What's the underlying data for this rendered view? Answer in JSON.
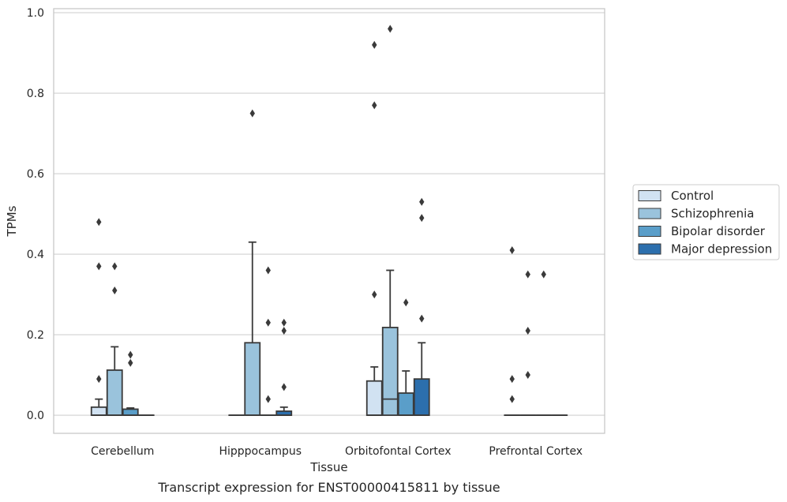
{
  "chart_data": {
    "type": "box",
    "xlabel": "Tissue",
    "ylabel": "TPMs",
    "caption": "Transcript expression for ENST00000415811 by tissue",
    "ylim": [
      -0.045,
      1.01
    ],
    "yticks": [
      "0.0",
      "0.2",
      "0.4",
      "0.6",
      "0.8",
      "1.0"
    ],
    "ytick_values": [
      0.0,
      0.2,
      0.4,
      0.6,
      0.8,
      1.0
    ],
    "grid": "horizontal",
    "legend_position": "right",
    "categories": [
      "Cerebellum",
      "Hipppocampus",
      "Orbitofontal Cortex",
      "Prefrontal Cortex"
    ],
    "series": [
      {
        "name": "Control",
        "color": "#d1e2f2",
        "boxes": [
          {
            "q1": 0.0,
            "median": 0.0,
            "q3": 0.02,
            "whisker_low": 0.0,
            "whisker_high": 0.04,
            "outliers": [
              0.09,
              0.37,
              0.48
            ]
          },
          {
            "q1": 0.0,
            "median": 0.0,
            "q3": 0.0,
            "whisker_low": 0.0,
            "whisker_high": 0.0,
            "outliers": []
          },
          {
            "q1": 0.0,
            "median": 0.0,
            "q3": 0.085,
            "whisker_low": 0.0,
            "whisker_high": 0.12,
            "outliers": [
              0.3,
              0.77,
              0.92
            ]
          },
          {
            "q1": 0.0,
            "median": 0.0,
            "q3": 0.0,
            "whisker_low": 0.0,
            "whisker_high": 0.0,
            "outliers": [
              0.04,
              0.09,
              0.41
            ]
          }
        ]
      },
      {
        "name": "Schizophrenia",
        "color": "#9ac3dc",
        "boxes": [
          {
            "q1": 0.0,
            "median": 0.0,
            "q3": 0.112,
            "whisker_low": 0.0,
            "whisker_high": 0.17,
            "outliers": [
              0.31,
              0.37
            ]
          },
          {
            "q1": 0.0,
            "median": 0.0,
            "q3": 0.18,
            "whisker_low": 0.0,
            "whisker_high": 0.43,
            "outliers": [
              0.75
            ]
          },
          {
            "q1": 0.0,
            "median": 0.04,
            "q3": 0.218,
            "whisker_low": 0.0,
            "whisker_high": 0.36,
            "outliers": [
              0.96
            ]
          },
          {
            "q1": 0.0,
            "median": 0.0,
            "q3": 0.0,
            "whisker_low": 0.0,
            "whisker_high": 0.0,
            "outliers": [
              0.1,
              0.21,
              0.35
            ]
          }
        ]
      },
      {
        "name": "Bipolar disorder",
        "color": "#5a9ec9",
        "boxes": [
          {
            "q1": 0.0,
            "median": 0.0,
            "q3": 0.015,
            "whisker_low": 0.0,
            "whisker_high": 0.018,
            "outliers": [
              0.13,
              0.15
            ]
          },
          {
            "q1": 0.0,
            "median": 0.0,
            "q3": 0.0,
            "whisker_low": 0.0,
            "whisker_high": 0.0,
            "outliers": [
              0.04,
              0.23,
              0.36
            ]
          },
          {
            "q1": 0.0,
            "median": 0.0,
            "q3": 0.055,
            "whisker_low": 0.0,
            "whisker_high": 0.11,
            "outliers": [
              0.28
            ]
          },
          {
            "q1": 0.0,
            "median": 0.0,
            "q3": 0.0,
            "whisker_low": 0.0,
            "whisker_high": 0.0,
            "outliers": [
              0.35
            ]
          }
        ]
      },
      {
        "name": "Major depression",
        "color": "#2c6fad",
        "boxes": [
          {
            "q1": 0.0,
            "median": 0.0,
            "q3": 0.0,
            "whisker_low": 0.0,
            "whisker_high": 0.0,
            "outliers": []
          },
          {
            "q1": 0.0,
            "median": 0.0,
            "q3": 0.01,
            "whisker_low": 0.0,
            "whisker_high": 0.02,
            "outliers": [
              0.07,
              0.21,
              0.23
            ]
          },
          {
            "q1": 0.0,
            "median": 0.0,
            "q3": 0.09,
            "whisker_low": 0.0,
            "whisker_high": 0.18,
            "outliers": [
              0.24,
              0.49,
              0.53
            ]
          },
          {
            "q1": 0.0,
            "median": 0.0,
            "q3": 0.0,
            "whisker_low": 0.0,
            "whisker_high": 0.0,
            "outliers": []
          }
        ]
      }
    ]
  },
  "style": {
    "box_edge_color": "#3a3a3a",
    "grid_color": "#d0d0d0",
    "frame_color": "#c8c8c8",
    "text_color": "#262626"
  }
}
